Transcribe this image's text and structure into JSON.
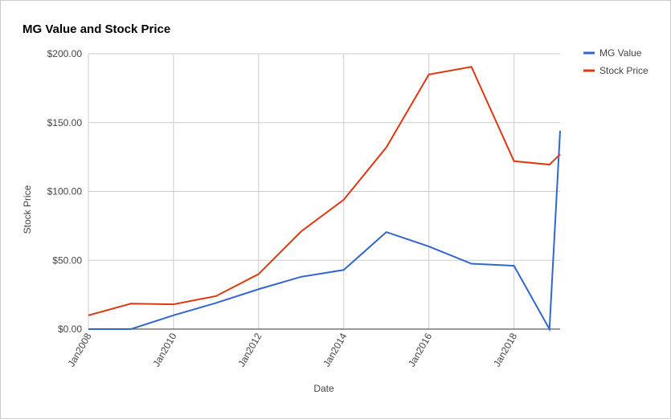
{
  "chart_data": {
    "type": "line",
    "title": "MG Value and Stock Price",
    "x_label": "Date",
    "y_label": "Stock Price",
    "x": [
      "2008-01",
      "2009-01",
      "2010-01",
      "2011-01",
      "2012-01",
      "2013-01",
      "2014-01",
      "2015-01",
      "2016-01",
      "2017-01",
      "2018-01",
      "2018-11",
      "2019-02"
    ],
    "series": [
      {
        "name": "MG Value",
        "color": "#3366cc",
        "values": [
          0,
          0,
          10,
          19,
          29,
          38,
          43,
          70.5,
          60,
          47.5,
          46,
          0,
          144
        ]
      },
      {
        "name": "Stock Price",
        "color": "#dc3912",
        "values": [
          10,
          18.5,
          18,
          24,
          40,
          71,
          94,
          132,
          185,
          190.5,
          122,
          119.5,
          127
        ]
      }
    ],
    "xlim": [
      "2008-01",
      "2019-02"
    ],
    "xticks": [
      {
        "value": "2008-01",
        "label": "Jan2008"
      },
      {
        "value": "2010-01",
        "label": "Jan2010"
      },
      {
        "value": "2012-01",
        "label": "Jan2012"
      },
      {
        "value": "2014-01",
        "label": "Jan2014"
      },
      {
        "value": "2016-01",
        "label": "Jan2016"
      },
      {
        "value": "2018-01",
        "label": "Jan2018"
      }
    ],
    "ylim": [
      0,
      200
    ],
    "yticks": [
      {
        "value": 0,
        "label": "$0.00"
      },
      {
        "value": 50,
        "label": "$50.00"
      },
      {
        "value": 100,
        "label": "$100.00"
      },
      {
        "value": 150,
        "label": "$150.00"
      },
      {
        "value": 200,
        "label": "$200.00"
      }
    ],
    "grid": true,
    "legend": "right"
  }
}
